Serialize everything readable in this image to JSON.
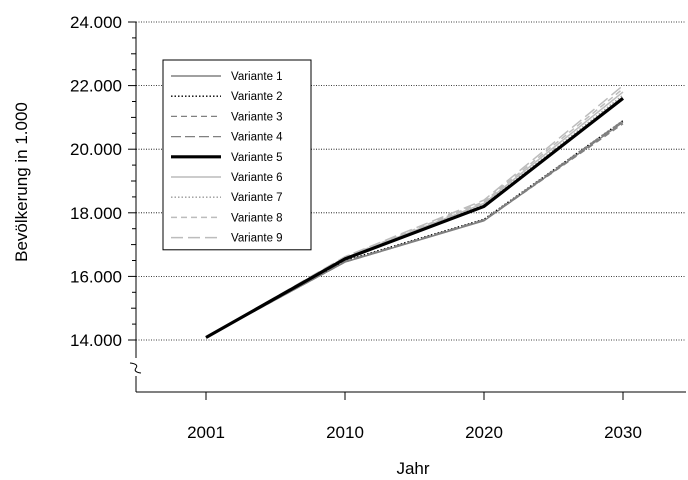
{
  "chart_data": {
    "type": "line",
    "title": "",
    "xlabel": "Jahr",
    "ylabel": "Bevölkerung in 1.000",
    "x": [
      "2001",
      "2010",
      "2020",
      "2030"
    ],
    "y_ticks": [
      "14.000",
      "16.000",
      "18.000",
      "20.000",
      "22.000",
      "24.000"
    ],
    "y_tick_values": [
      14000,
      16000,
      18000,
      20000,
      22000,
      24000
    ],
    "ylim": [
      14000,
      24000
    ],
    "y_axis_break": true,
    "grid": "horizontal dotted",
    "legend_position": "top-left",
    "series": [
      {
        "name": "Variante 1",
        "values": [
          14080,
          16450,
          17750,
          20850
        ],
        "color": "#808080",
        "width": 1.4,
        "dash": ""
      },
      {
        "name": "Variante 2",
        "values": [
          14080,
          16500,
          17800,
          20900
        ],
        "color": "#000000",
        "width": 1.3,
        "dash": "1.5,2"
      },
      {
        "name": "Variante 3",
        "values": [
          14080,
          16450,
          17760,
          20800
        ],
        "color": "#808080",
        "width": 1.3,
        "dash": "6,4"
      },
      {
        "name": "Variante 4",
        "values": [
          14080,
          16480,
          17780,
          20900
        ],
        "color": "#808080",
        "width": 1.3,
        "dash": "10,4"
      },
      {
        "name": "Variante 5",
        "values": [
          14080,
          16550,
          18200,
          21600
        ],
        "color": "#000000",
        "width": 3.2,
        "dash": ""
      },
      {
        "name": "Variante 6",
        "values": [
          14080,
          16580,
          18300,
          21800
        ],
        "color": "#bcbcbc",
        "width": 1.5,
        "dash": ""
      },
      {
        "name": "Variante 7",
        "values": [
          14080,
          16560,
          18250,
          21700
        ],
        "color": "#9a9a9a",
        "width": 1.3,
        "dash": "1.5,2"
      },
      {
        "name": "Variante 8",
        "values": [
          14080,
          16600,
          18350,
          21900
        ],
        "color": "#bcbcbc",
        "width": 1.5,
        "dash": "6,4"
      },
      {
        "name": "Variante 9",
        "values": [
          14080,
          16620,
          18400,
          22000
        ],
        "color": "#bcbcbc",
        "width": 1.5,
        "dash": "12,5"
      }
    ]
  }
}
